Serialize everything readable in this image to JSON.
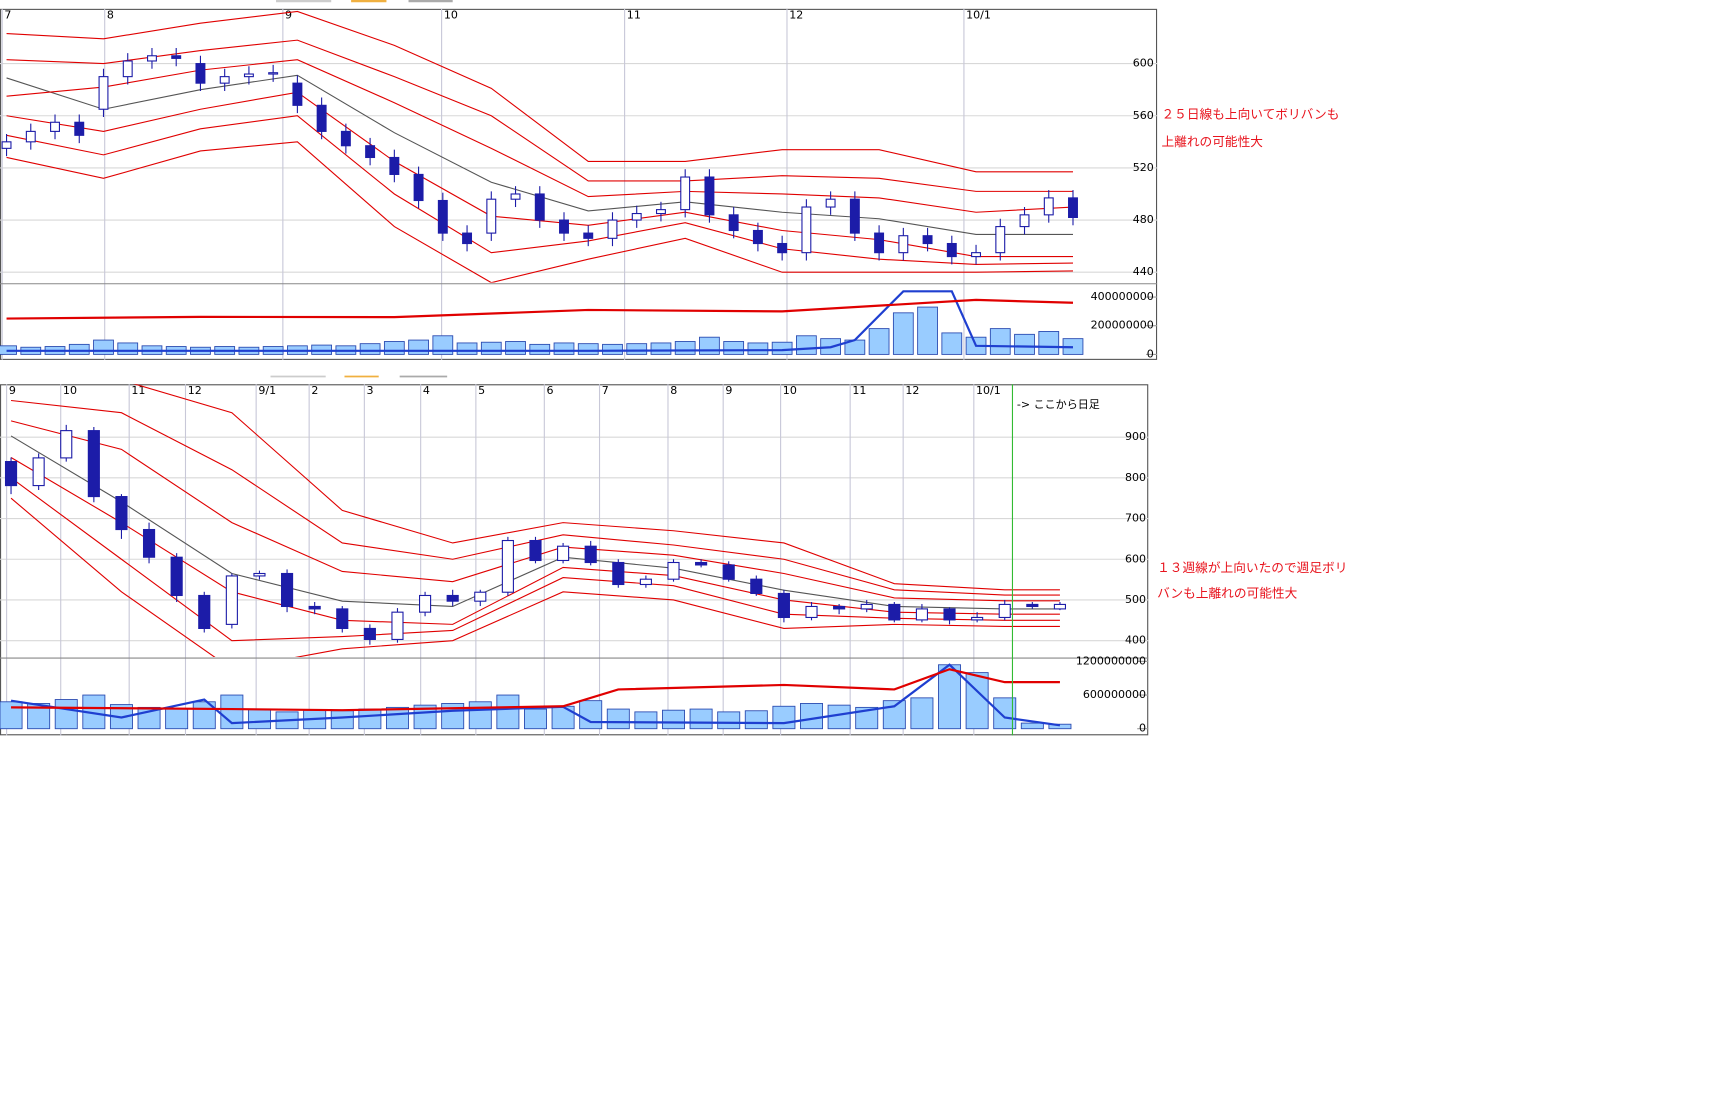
{
  "chart_data": [
    {
      "type": "candlestick",
      "xlim": [
        -0.27,
        47.47
      ],
      "xticks": [
        {
          "value": -0.18,
          "label": "7"
        },
        {
          "value": 4.05,
          "label": "8"
        },
        {
          "value": 11.4,
          "label": "9"
        },
        {
          "value": 17.95,
          "label": "10"
        },
        {
          "value": 25.5,
          "label": "11"
        },
        {
          "value": 32.2,
          "label": "12"
        },
        {
          "value": 39.5,
          "label": "10/1"
        }
      ],
      "ylim": [
        432,
        642
      ],
      "yticks": [
        440,
        480,
        520,
        560,
        600
      ],
      "grid": true,
      "up_color": "#ffffff",
      "down_color": "#1c1ca8",
      "open": [
        535,
        540,
        548,
        555,
        565,
        590,
        602,
        606,
        600,
        585,
        590,
        592,
        585,
        568,
        548,
        537,
        528,
        515,
        495,
        470,
        470,
        496,
        500,
        480,
        470,
        466,
        480,
        485,
        488,
        513,
        484,
        472,
        462,
        455,
        490,
        496,
        470,
        455,
        468,
        462,
        452,
        455,
        475,
        484,
        497
      ],
      "high": [
        546,
        554,
        561,
        561,
        596,
        608,
        612,
        612,
        606,
        596,
        598,
        599,
        591,
        574,
        554,
        543,
        534,
        521,
        501,
        476,
        502,
        506,
        506,
        486,
        476,
        486,
        491,
        494,
        519,
        519,
        490,
        478,
        468,
        496,
        502,
        502,
        476,
        474,
        474,
        468,
        461,
        481,
        490,
        503,
        503
      ],
      "low": [
        529,
        534,
        542,
        539,
        559,
        584,
        596,
        598,
        579,
        579,
        584,
        586,
        562,
        542,
        531,
        522,
        509,
        489,
        464,
        456,
        464,
        490,
        474,
        464,
        460,
        460,
        474,
        479,
        482,
        478,
        466,
        456,
        449,
        449,
        484,
        464,
        449,
        449,
        456,
        446,
        446,
        449,
        469,
        478,
        476
      ],
      "close": [
        540,
        548,
        555,
        545,
        590,
        602,
        606,
        604,
        585,
        590,
        592,
        593,
        568,
        548,
        537,
        528,
        515,
        495,
        470,
        462,
        496,
        500,
        480,
        470,
        466,
        480,
        485,
        488,
        513,
        484,
        472,
        462,
        455,
        490,
        496,
        470,
        455,
        468,
        462,
        452,
        455,
        475,
        484,
        497,
        482
      ],
      "bands": [
        {
          "color": "#555555",
          "x": [
            0,
            4,
            8,
            12,
            16,
            20,
            24,
            28,
            32,
            36,
            40,
            44
          ],
          "values": [
            589,
            565,
            580,
            591,
            547,
            509,
            487,
            494,
            486,
            481,
            469,
            469
          ]
        },
        {
          "color": "#e00000",
          "x": [
            0,
            4,
            8,
            12,
            16,
            20,
            24,
            28,
            32,
            36,
            40,
            44
          ],
          "values": [
            623,
            619,
            631,
            640,
            614,
            581,
            525,
            525,
            534,
            534,
            517,
            517
          ]
        },
        {
          "color": "#e00000",
          "x": [
            0,
            4,
            8,
            12,
            16,
            20,
            24,
            28,
            32,
            36,
            40,
            44
          ],
          "values": [
            603,
            600,
            610,
            618,
            590,
            560,
            510,
            510,
            514,
            512,
            502,
            502
          ]
        },
        {
          "color": "#e00000",
          "x": [
            0,
            4,
            8,
            12,
            16,
            20,
            24,
            28,
            32,
            36,
            40,
            44
          ],
          "values": [
            575,
            582,
            595,
            603,
            570,
            535,
            498,
            502,
            500,
            497,
            486,
            490
          ]
        },
        {
          "color": "#e00000",
          "x": [
            0,
            4,
            8,
            12,
            16,
            20,
            24,
            28,
            32,
            36,
            40,
            44
          ],
          "values": [
            560,
            548,
            565,
            578,
            525,
            483,
            476,
            486,
            472,
            465,
            452,
            452
          ]
        },
        {
          "color": "#e00000",
          "x": [
            0,
            4,
            8,
            12,
            16,
            20,
            24,
            28,
            32,
            36,
            40,
            44
          ],
          "values": [
            545,
            530,
            550,
            560,
            500,
            455,
            464,
            478,
            458,
            450,
            446,
            447
          ]
        },
        {
          "color": "#e00000",
          "x": [
            0,
            4,
            8,
            12,
            16,
            20,
            24,
            28,
            32,
            36,
            40,
            44
          ],
          "values": [
            528,
            512,
            533,
            540,
            475,
            432,
            450,
            466,
            440,
            440,
            440,
            441
          ]
        }
      ],
      "volume": {
        "color": "#99ccff",
        "ylim": [
          0,
          485000000
        ],
        "yticks": [
          0,
          200000000,
          400000000
        ],
        "values": [
          60000000,
          50000000,
          55000000,
          70000000,
          100000000,
          80000000,
          60000000,
          55000000,
          50000000,
          55000000,
          50000000,
          55000000,
          60000000,
          65000000,
          60000000,
          75000000,
          90000000,
          100000000,
          130000000,
          80000000,
          85000000,
          90000000,
          70000000,
          80000000,
          75000000,
          70000000,
          75000000,
          80000000,
          90000000,
          120000000,
          90000000,
          80000000,
          85000000,
          130000000,
          110000000,
          100000000,
          180000000,
          290000000,
          330000000,
          150000000,
          120000000,
          180000000,
          140000000,
          160000000,
          110000000
        ]
      },
      "volume_lines": [
        {
          "color": "#1f3fd0",
          "x": [
            0,
            8,
            16,
            24,
            32,
            34,
            35,
            37,
            38,
            39,
            40,
            44
          ],
          "values": [
            25000000,
            25000000,
            25000000,
            25000000,
            30000000,
            50000000,
            100000000,
            440000000,
            440000000,
            440000000,
            60000000,
            50000000
          ]
        },
        {
          "color": "#e00000",
          "x": [
            0,
            8,
            16,
            24,
            32,
            36,
            40,
            44
          ],
          "values": [
            250000000,
            262000000,
            260000000,
            310000000,
            300000000,
            340000000,
            380000000,
            360000000
          ]
        }
      ],
      "annotations": [
        "２５日線も上向いてボリバンも",
        "上離れの可能性大"
      ]
    },
    {
      "type": "candlestick",
      "xlim": [
        -0.4,
        41.2
      ],
      "xticks": [
        {
          "value": -0.16,
          "label": "9"
        },
        {
          "value": 1.8,
          "label": "10"
        },
        {
          "value": 4.28,
          "label": "11"
        },
        {
          "value": 6.32,
          "label": "12"
        },
        {
          "value": 8.88,
          "label": "9/1"
        },
        {
          "value": 10.8,
          "label": "2"
        },
        {
          "value": 12.8,
          "label": "3"
        },
        {
          "value": 14.84,
          "label": "4"
        },
        {
          "value": 16.84,
          "label": "5"
        },
        {
          "value": 19.32,
          "label": "6"
        },
        {
          "value": 21.32,
          "label": "7"
        },
        {
          "value": 23.8,
          "label": "8"
        },
        {
          "value": 25.8,
          "label": "9"
        },
        {
          "value": 27.88,
          "label": "10"
        },
        {
          "value": 30.4,
          "label": "11"
        },
        {
          "value": 32.32,
          "label": "12"
        },
        {
          "value": 34.88,
          "label": "10/1"
        }
      ],
      "ylim": [
        360,
        1030
      ],
      "yticks": [
        400,
        500,
        600,
        700,
        800,
        900
      ],
      "grid": true,
      "up_color": "#ffffff",
      "down_color": "#1c1ca8",
      "open": [
        840,
        781,
        849,
        916,
        754,
        673,
        605,
        511,
        440,
        559,
        565,
        484,
        478,
        430,
        403,
        470,
        511,
        497,
        519,
        646,
        597,
        632,
        592,
        538,
        551,
        592,
        586,
        551,
        516,
        457,
        484,
        478,
        489,
        451,
        478,
        451,
        457,
        489,
        478
      ],
      "high": [
        850,
        860,
        930,
        925,
        760,
        690,
        615,
        520,
        565,
        572,
        575,
        495,
        485,
        440,
        480,
        520,
        525,
        525,
        655,
        655,
        640,
        645,
        600,
        560,
        600,
        600,
        595,
        560,
        525,
        495,
        490,
        500,
        495,
        490,
        482,
        470,
        500,
        495,
        495
      ],
      "low": [
        760,
        770,
        840,
        740,
        650,
        590,
        495,
        420,
        430,
        550,
        470,
        465,
        420,
        390,
        395,
        460,
        485,
        485,
        510,
        590,
        590,
        585,
        530,
        530,
        545,
        580,
        545,
        510,
        445,
        450,
        465,
        470,
        445,
        445,
        440,
        445,
        450,
        478,
        475
      ],
      "close": [
        781,
        849,
        916,
        754,
        673,
        605,
        511,
        430,
        559,
        565,
        484,
        478,
        430,
        403,
        470,
        511,
        497,
        519,
        646,
        597,
        632,
        592,
        538,
        551,
        592,
        586,
        551,
        516,
        457,
        484,
        478,
        489,
        451,
        478,
        451,
        457,
        489,
        484,
        489
      ],
      "bands": [
        {
          "color": "#555555",
          "x": [
            0,
            4,
            8,
            12,
            16,
            20,
            24,
            28,
            32,
            36,
            38
          ],
          "values": [
            903,
            741,
            565,
            497,
            484,
            605,
            578,
            524,
            484,
            478,
            478
          ]
        },
        {
          "color": "#e00000",
          "x": [
            0,
            4,
            8,
            12,
            16,
            20,
            24,
            28,
            32,
            36,
            38
          ],
          "values": [
            1040,
            1040,
            960,
            720,
            640,
            690,
            670,
            640,
            540,
            525,
            525
          ]
        },
        {
          "color": "#e00000",
          "x": [
            0,
            4,
            8,
            12,
            16,
            20,
            24,
            28,
            32,
            36,
            38
          ],
          "values": [
            990,
            960,
            820,
            640,
            600,
            660,
            635,
            600,
            525,
            512,
            512
          ]
        },
        {
          "color": "#e00000",
          "x": [
            0,
            4,
            8,
            12,
            16,
            20,
            24,
            28,
            32,
            36,
            38
          ],
          "values": [
            940,
            870,
            690,
            570,
            545,
            630,
            610,
            565,
            505,
            498,
            498
          ]
        },
        {
          "color": "#e00000",
          "x": [
            0,
            4,
            8,
            12,
            16,
            20,
            24,
            28,
            32,
            36,
            38
          ],
          "values": [
            850,
            690,
            520,
            450,
            440,
            580,
            560,
            500,
            470,
            465,
            465
          ]
        },
        {
          "color": "#e00000",
          "x": [
            0,
            4,
            8,
            12,
            16,
            20,
            24,
            28,
            32,
            36,
            38
          ],
          "values": [
            800,
            600,
            400,
            410,
            425,
            555,
            535,
            465,
            455,
            450,
            450
          ]
        },
        {
          "color": "#e00000",
          "x": [
            0,
            4,
            8,
            12,
            16,
            20,
            24,
            28,
            32,
            36,
            38
          ],
          "values": [
            750,
            520,
            330,
            380,
            400,
            520,
            500,
            430,
            440,
            435,
            435
          ]
        }
      ],
      "volume": {
        "color": "#99ccff",
        "ylim": [
          0,
          1240000000
        ],
        "yticks": [
          0,
          600000000,
          1200000000
        ],
        "values": [
          480000000,
          450000000,
          520000000,
          600000000,
          430000000,
          380000000,
          350000000,
          480000000,
          600000000,
          350000000,
          300000000,
          330000000,
          320000000,
          350000000,
          380000000,
          420000000,
          450000000,
          480000000,
          600000000,
          350000000,
          400000000,
          500000000,
          350000000,
          300000000,
          330000000,
          350000000,
          300000000,
          320000000,
          400000000,
          450000000,
          420000000,
          380000000,
          500000000,
          550000000,
          1140000000,
          1000000000,
          550000000,
          100000000,
          80000000
        ]
      },
      "volume_lines": [
        {
          "color": "#1f3fd0",
          "x": [
            0,
            4,
            7,
            8,
            12,
            16,
            20,
            21,
            28,
            32,
            34,
            36,
            38
          ],
          "values": [
            500000000,
            200000000,
            520000000,
            100000000,
            200000000,
            320000000,
            390000000,
            120000000,
            100000000,
            400000000,
            1140000000,
            200000000,
            60000000
          ]
        },
        {
          "color": "#e00000",
          "x": [
            0,
            8,
            12,
            20,
            22,
            28,
            32,
            34,
            36,
            38
          ],
          "values": [
            380000000,
            350000000,
            330000000,
            400000000,
            700000000,
            780000000,
            700000000,
            1060000000,
            830000000,
            830000000
          ]
        }
      ],
      "divider": {
        "x": 36.28,
        "label": "-> ここから日足",
        "color": "#33bb33"
      },
      "annotations": [
        "１３週線が上向いたので週足ボリ",
        "バンも上離れの可能性大"
      ]
    }
  ]
}
